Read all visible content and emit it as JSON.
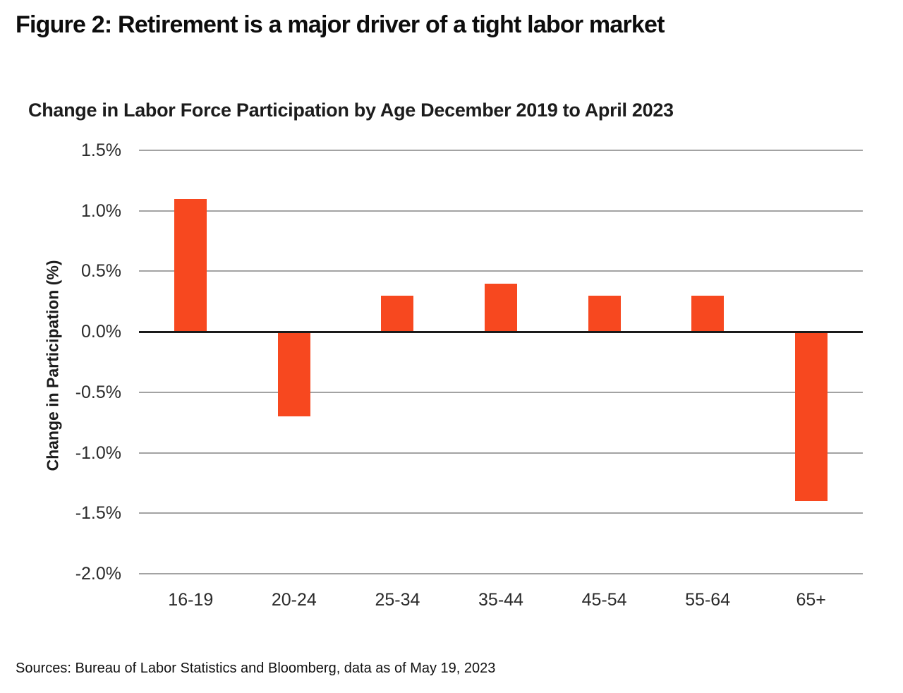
{
  "figure_title": "Figure 2: Retirement is a major driver of a tight labor market",
  "source_note": "Sources: Bureau of Labor Statistics and Bloomberg, data as of May 19, 2023",
  "colors": {
    "bar": "#f7481f",
    "gridline": "#a3a3a3",
    "zero_line": "#1a1a1a",
    "text": "#1c1c1c"
  },
  "chart_data": {
    "type": "bar",
    "title": "Change in Labor Force Participation by Age December 2019 to April 2023",
    "xlabel": "",
    "ylabel": "Change in Participation (%)",
    "categories": [
      "16-19",
      "20-24",
      "25-34",
      "35-44",
      "45-54",
      "55-64",
      "65+"
    ],
    "values": [
      1.1,
      -0.7,
      0.3,
      0.4,
      0.3,
      0.3,
      -1.4
    ],
    "ylim": [
      -2.0,
      1.5
    ],
    "yticks": [
      1.5,
      1.0,
      0.5,
      0.0,
      -0.5,
      -1.0,
      -1.5,
      -2.0
    ],
    "ytick_labels": [
      "1.5%",
      "1.0%",
      "0.5%",
      "0.0%",
      "-0.5%",
      "-1.0%",
      "-1.5%",
      "-2.0%"
    ],
    "grid": "horizontal",
    "legend": "none",
    "bar_color": "#f7481f"
  }
}
